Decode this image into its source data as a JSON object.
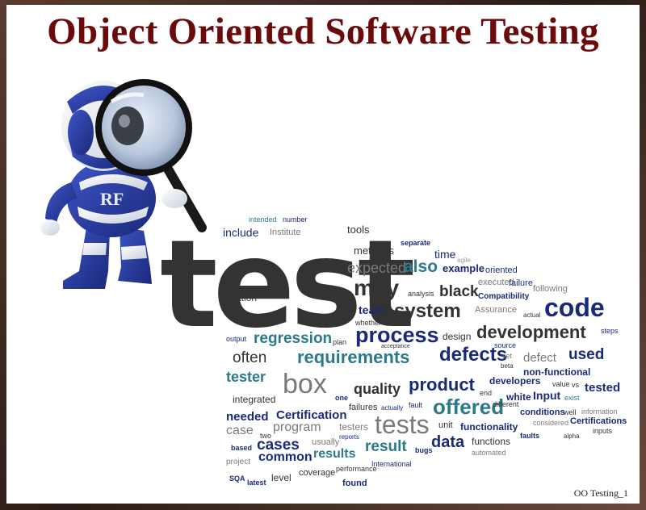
{
  "slide": {
    "title": "Object Oriented Software Testing",
    "footer": "OO Testing_1"
  },
  "colors": {
    "title": "#6b0a0a",
    "navy": "#1b2a78",
    "teal": "#2a7a8a",
    "gray": "#7a7a7a",
    "dark": "#333333",
    "robot_blue": "#2a3fa0"
  },
  "illustration": {
    "name": "robot-with-magnifying-glass",
    "chest_letters": "RF"
  },
  "word_cloud": [
    {
      "text": "test",
      "color": "#333333"
    },
    {
      "text": "intended",
      "color": "#2a7a8a"
    },
    {
      "text": "number",
      "color": "#1b2a78"
    },
    {
      "text": "include",
      "color": "#1b2a78"
    },
    {
      "text": "Institute",
      "color": "#7a7a7a"
    },
    {
      "text": "tools",
      "color": "#333333"
    },
    {
      "text": "methods",
      "color": "#333333"
    },
    {
      "text": "separate",
      "color": "#1b2a78"
    },
    {
      "text": "time",
      "color": "#1b2a78"
    },
    {
      "text": "agile",
      "color": "#9a9a9a"
    },
    {
      "text": "expected",
      "color": "#7a7a7a"
    },
    {
      "text": "also",
      "color": "#2a7a8a"
    },
    {
      "text": "example",
      "color": "#1b2a78"
    },
    {
      "text": "oriented",
      "color": "#1b2a78"
    },
    {
      "text": "may",
      "color": "#333333"
    },
    {
      "text": "executed",
      "color": "#7a7a7a"
    },
    {
      "text": "failure",
      "color": "#1b2a78"
    },
    {
      "text": "black",
      "color": "#333333"
    },
    {
      "text": "following",
      "color": "#7a7a7a"
    },
    {
      "text": "citation",
      "color": "#333333"
    },
    {
      "text": "analysis",
      "color": "#333333"
    },
    {
      "text": "Compatibility",
      "color": "#1b2a78"
    },
    {
      "text": "code",
      "color": "#1b2a78"
    },
    {
      "text": "team",
      "color": "#1b2a78"
    },
    {
      "text": "system",
      "color": "#333333"
    },
    {
      "text": "Assurance",
      "color": "#7a7a7a"
    },
    {
      "text": "actual",
      "color": "#333333"
    },
    {
      "text": "whether",
      "color": "#333333"
    },
    {
      "text": "output",
      "color": "#1b2a78"
    },
    {
      "text": "regression",
      "color": "#2a7a8a"
    },
    {
      "text": "plan",
      "color": "#333333"
    },
    {
      "text": "process",
      "color": "#1b2a78"
    },
    {
      "text": "design",
      "color": "#333333"
    },
    {
      "text": "development",
      "color": "#333333"
    },
    {
      "text": "steps",
      "color": "#1b2a78"
    },
    {
      "text": "acceptance",
      "color": "#333333"
    },
    {
      "text": "source",
      "color": "#1b2a78"
    },
    {
      "text": "often",
      "color": "#333333"
    },
    {
      "text": "requirements",
      "color": "#2a7a8a"
    },
    {
      "text": "defects",
      "color": "#1b2a78"
    },
    {
      "text": "set",
      "color": "#7a7a7a"
    },
    {
      "text": "defect",
      "color": "#7a7a7a"
    },
    {
      "text": "used",
      "color": "#1b2a78"
    },
    {
      "text": "beta",
      "color": "#333333"
    },
    {
      "text": "non-functional",
      "color": "#1b2a78"
    },
    {
      "text": "tester",
      "color": "#2a7a8a"
    },
    {
      "text": "box",
      "color": "#7a7a7a"
    },
    {
      "text": "quality",
      "color": "#333333"
    },
    {
      "text": "product",
      "color": "#1b2a78"
    },
    {
      "text": "developers",
      "color": "#1b2a78"
    },
    {
      "text": "value",
      "color": "#333333"
    },
    {
      "text": "vs",
      "color": "#333333"
    },
    {
      "text": "tested",
      "color": "#1b2a78"
    },
    {
      "text": "one",
      "color": "#1b2a78"
    },
    {
      "text": "integrated",
      "color": "#333333"
    },
    {
      "text": "end",
      "color": "#333333"
    },
    {
      "text": "white",
      "color": "#1b2a78"
    },
    {
      "text": "Input",
      "color": "#1b2a78"
    },
    {
      "text": "exist",
      "color": "#2a7a8a"
    },
    {
      "text": "failures",
      "color": "#333333"
    },
    {
      "text": "actually",
      "color": "#1b2a78"
    },
    {
      "text": "fault",
      "color": "#1b2a78"
    },
    {
      "text": "offered",
      "color": "#2a7a8a"
    },
    {
      "text": "different",
      "color": "#333333"
    },
    {
      "text": "conditions",
      "color": "#1b2a78"
    },
    {
      "text": "well",
      "color": "#333333"
    },
    {
      "text": "information",
      "color": "#7a7a7a"
    },
    {
      "text": "needed",
      "color": "#1b2a78"
    },
    {
      "text": "Certification",
      "color": "#1b2a78"
    },
    {
      "text": "tests",
      "color": "#7a7a7a"
    },
    {
      "text": "considered",
      "color": "#7a7a7a"
    },
    {
      "text": "Certifications",
      "color": "#1b2a78"
    },
    {
      "text": "case",
      "color": "#7a7a7a"
    },
    {
      "text": "program",
      "color": "#7a7a7a"
    },
    {
      "text": "testers",
      "color": "#7a7a7a"
    },
    {
      "text": "unit",
      "color": "#333333"
    },
    {
      "text": "functionality",
      "color": "#1b2a78"
    },
    {
      "text": "faults",
      "color": "#1b2a78"
    },
    {
      "text": "alpha",
      "color": "#333333"
    },
    {
      "text": "inputs",
      "color": "#333333"
    },
    {
      "text": "two",
      "color": "#333333"
    },
    {
      "text": "reports",
      "color": "#1b2a78"
    },
    {
      "text": "based",
      "color": "#1b2a78"
    },
    {
      "text": "cases",
      "color": "#1b2a78"
    },
    {
      "text": "usually",
      "color": "#7a7a7a"
    },
    {
      "text": "result",
      "color": "#2a7a8a"
    },
    {
      "text": "data",
      "color": "#1b2a78"
    },
    {
      "text": "functions",
      "color": "#333333"
    },
    {
      "text": "project",
      "color": "#7a7a7a"
    },
    {
      "text": "common",
      "color": "#1b2a78"
    },
    {
      "text": "results",
      "color": "#2a7a8a"
    },
    {
      "text": "bugs",
      "color": "#1b2a78"
    },
    {
      "text": "automated",
      "color": "#7a7a7a"
    },
    {
      "text": "International",
      "color": "#1b2a78"
    },
    {
      "text": "SQA",
      "color": "#1b2a78"
    },
    {
      "text": "latest",
      "color": "#1b2a78"
    },
    {
      "text": "level",
      "color": "#333333"
    },
    {
      "text": "coverage",
      "color": "#333333"
    },
    {
      "text": "performance",
      "color": "#333333"
    },
    {
      "text": "found",
      "color": "#1b2a78"
    }
  ]
}
